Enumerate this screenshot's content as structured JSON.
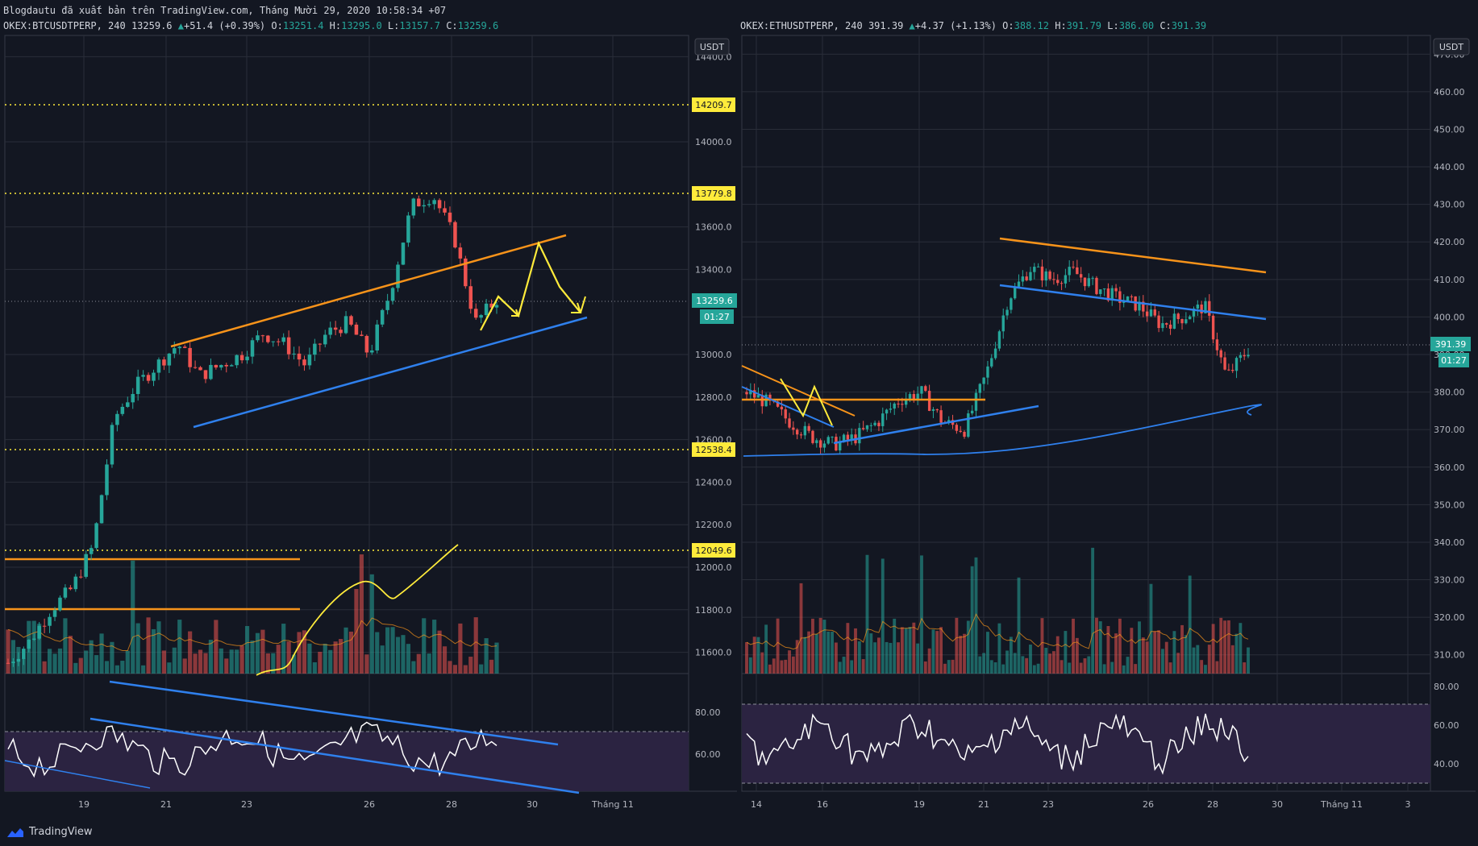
{
  "publisher_line": "Blogdautu đã xuất bản trên TradingView.com, Tháng Mười 29, 2020 10:58:34 +07",
  "brand": "TradingView",
  "colors": {
    "background": "#131722",
    "grid": "#2a2e39",
    "up": "#26a69a",
    "down": "#ef5350",
    "orange": "#f7931a",
    "blue": "#2f80ed",
    "yellow": "#ffeb3b",
    "rsi_band": "#7e57c2"
  },
  "left": {
    "symbol": "OKEX:BTCUSDTPERP, 240",
    "last": "13259.6",
    "change": "+51.4 (+0.39%)",
    "o_label": "O:",
    "o": "13251.4",
    "h_label": "H:",
    "h": "13295.0",
    "l_label": "L:",
    "l": "13157.7",
    "c_label": "C:",
    "c": "13259.6",
    "currency": "USDT",
    "price_ticks": [
      "14400.0",
      "14000.0",
      "13600.0",
      "13400.0",
      "13000.0",
      "12800.0",
      "12600.0",
      "12400.0",
      "12200.0",
      "12000.0",
      "11800.0",
      "11600.0"
    ],
    "rsi_ticks": [
      "80.00",
      "60.00"
    ],
    "x_ticks": [
      "19",
      "21",
      "23",
      "26",
      "28",
      "30",
      "Tháng 11"
    ],
    "level_labels": [
      "14209.7",
      "13779.8",
      "12538.4",
      "12049.6"
    ],
    "price_label": "13259.6",
    "countdown": "01:27"
  },
  "right": {
    "symbol": "OKEX:ETHUSDTPERP, 240",
    "last": "391.39",
    "change": "+4.37 (+1.13%)",
    "o_label": "O:",
    "o": "388.12",
    "h_label": "H:",
    "h": "391.79",
    "l_label": "L:",
    "l": "386.00",
    "c_label": "C:",
    "c": "391.39",
    "currency": "USDT",
    "price_ticks": [
      "470.00",
      "460.00",
      "450.00",
      "440.00",
      "430.00",
      "420.00",
      "410.00",
      "400.00",
      "390.00",
      "380.00",
      "370.00",
      "360.00",
      "350.00",
      "340.00",
      "330.00",
      "320.00",
      "310.00"
    ],
    "rsi_ticks": [
      "80.00",
      "60.00",
      "40.00"
    ],
    "x_ticks": [
      "14",
      "16",
      "19",
      "21",
      "23",
      "26",
      "28",
      "30",
      "Tháng 11",
      "3"
    ],
    "price_label": "391.39",
    "countdown": "01:27"
  },
  "chart_data": [
    {
      "type": "candlestick",
      "title": "OKEX:BTCUSDTPERP, 240",
      "ylim": [
        11500,
        14500
      ],
      "horizontal_levels": [
        14209.7,
        13779.8,
        12538.4,
        12049.6
      ],
      "x": [
        "19",
        "21",
        "23",
        "26",
        "28",
        "30"
      ],
      "close_path": [
        11550,
        11650,
        11800,
        11900,
        12100,
        12700,
        12850,
        12950,
        13050,
        12900,
        12950,
        13000,
        13100,
        13050,
        12950,
        13100,
        13150,
        13000,
        13300,
        13700,
        13750,
        13550,
        13150,
        13259.6
      ]
    },
    {
      "type": "candlestick",
      "title": "OKEX:ETHUSDTPERP, 240",
      "ylim": [
        305,
        475
      ],
      "x": [
        "14",
        "16",
        "19",
        "21",
        "23",
        "26",
        "28",
        "30",
        "3"
      ],
      "close_path": [
        380,
        377,
        372,
        368,
        366,
        368,
        372,
        378,
        380,
        372,
        370,
        385,
        405,
        413,
        410,
        412,
        408,
        405,
        403,
        398,
        400,
        403,
        384,
        391.39
      ]
    }
  ]
}
